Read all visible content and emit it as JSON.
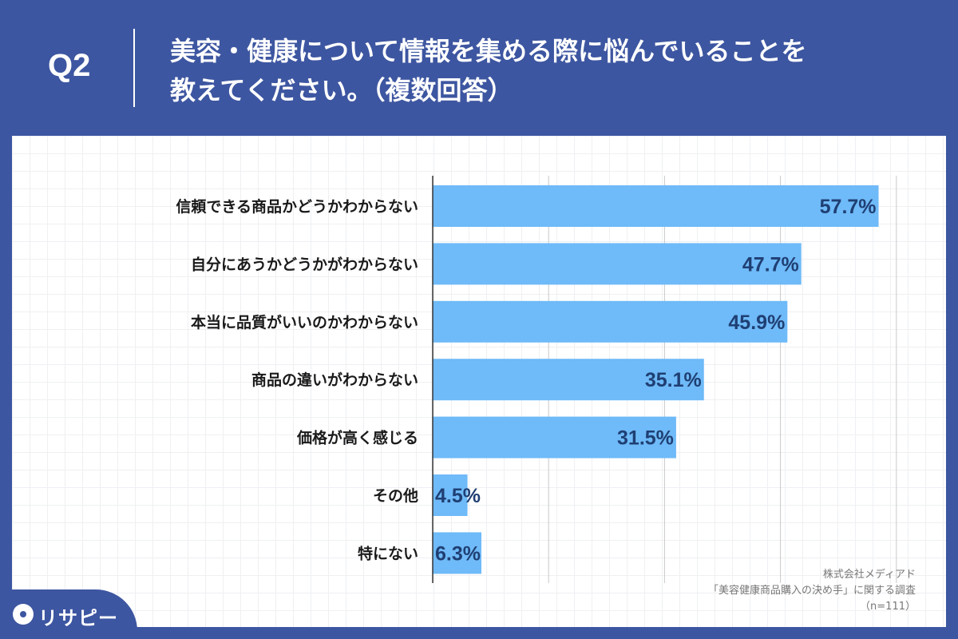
{
  "header": {
    "q_label": "Q2",
    "title_line1": "美容・健康について情報を集める際に悩んでいることを",
    "title_line2": "教えてください。（複数回答）"
  },
  "source": {
    "line1": "株式会社メディアド",
    "line2": "「美容健康商品購入の決め手」に関する調査",
    "line3": "（n=111）"
  },
  "brand": {
    "name": "リサピー"
  },
  "colors": {
    "background": "#3d56a1",
    "bar": "#6fbaf8",
    "value_label": "#1f3f73",
    "category_label": "#1a1a1a"
  },
  "chart_data": {
    "type": "bar",
    "orientation": "horizontal",
    "categories": [
      "信頼できる商品かどうかわからない",
      "自分にあうかどうかがわからない",
      "本当に品質がいいのかわからない",
      "商品の違いがわからない",
      "価格が高く感じる",
      "その他",
      "特にない"
    ],
    "values": [
      57.7,
      47.7,
      45.9,
      35.1,
      31.5,
      4.5,
      6.3
    ],
    "value_labels": [
      "57.7%",
      "47.7%",
      "45.9%",
      "35.1%",
      "31.5%",
      "4.5%",
      "6.3%"
    ],
    "unit": "%",
    "xlim": [
      0,
      60
    ],
    "grid": "vertical every 15",
    "legend": "none"
  }
}
